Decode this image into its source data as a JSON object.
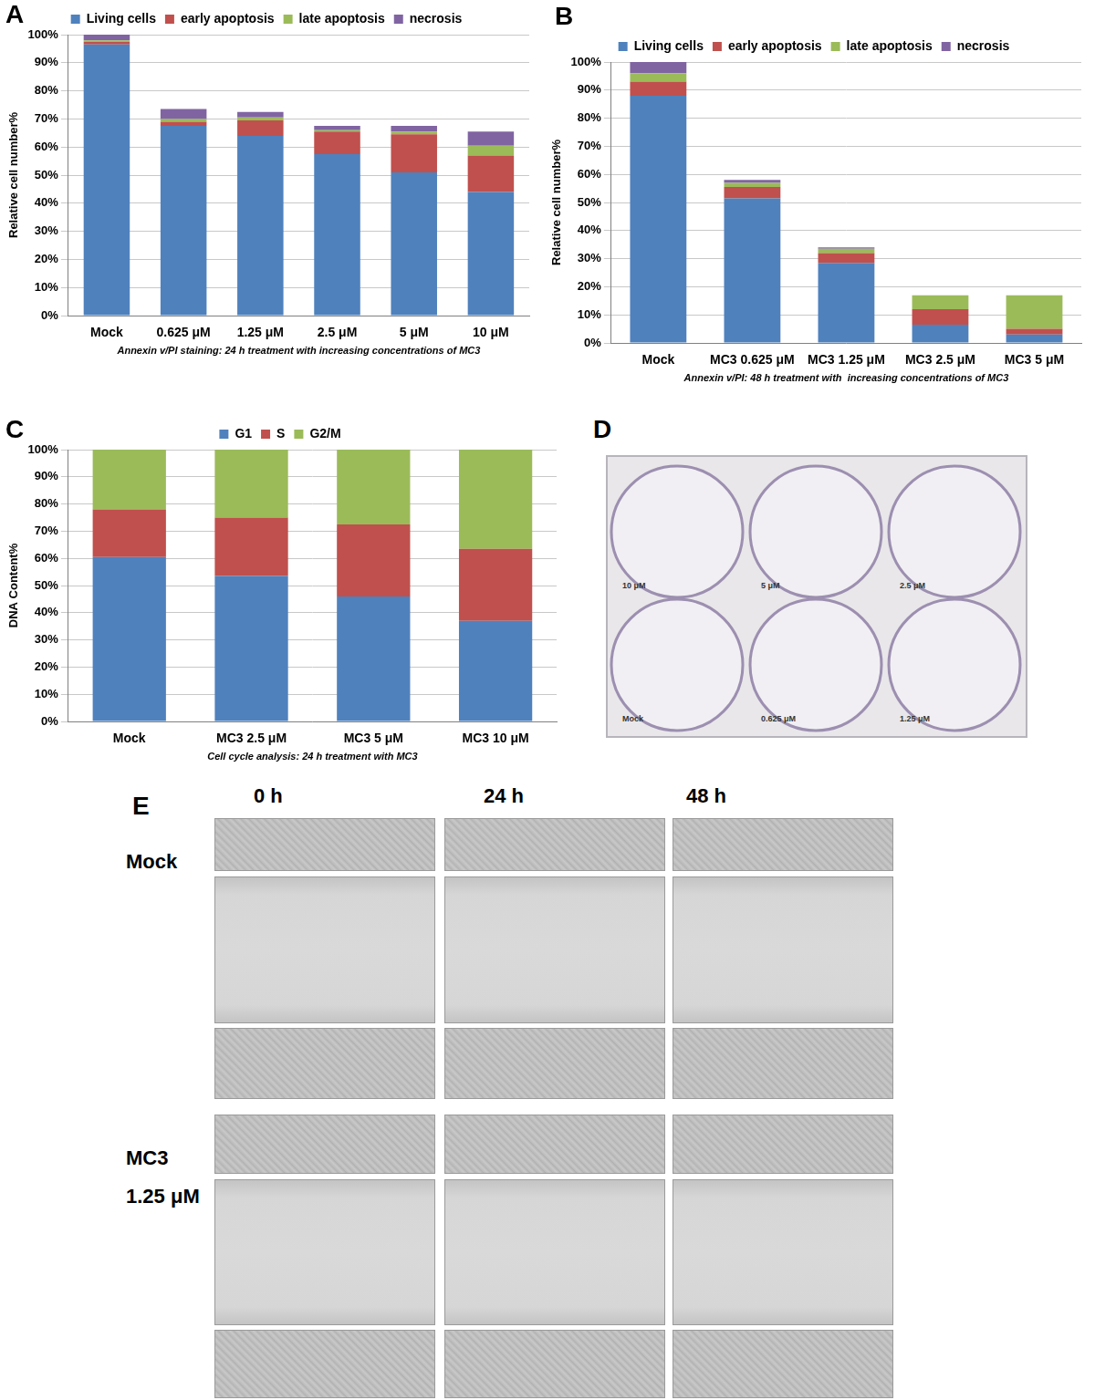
{
  "chart_data": [
    {
      "panel": "A",
      "type": "bar",
      "stacked": true,
      "grid": true,
      "legend": "top",
      "x_label": "Annexin v/PI staining: 24 h treatment with increasing concentrations of MC3",
      "y_label": "Relative cell number%",
      "categories": [
        "Mock",
        "0.625 μM",
        "1.25 μM",
        "2.5 μM",
        "5 μM",
        "10 μM"
      ],
      "series": [
        {
          "name": "Living cells",
          "color": "#4f81bd",
          "values": [
            96.5,
            67.5,
            64,
            57.5,
            51,
            44
          ]
        },
        {
          "name": "early apoptosis",
          "color": "#c0504d",
          "values": [
            1,
            1.5,
            5.5,
            8,
            13.5,
            13
          ]
        },
        {
          "name": "late apoptosis",
          "color": "#9bbb59",
          "values": [
            0.5,
            1,
            1,
            0.5,
            1,
            3.5
          ]
        },
        {
          "name": "necrosis",
          "color": "#8064a2",
          "values": [
            2,
            3.5,
            2,
            1.5,
            2,
            5
          ]
        }
      ],
      "ylim": [
        0,
        100
      ],
      "yticks": [
        {
          "value": 0,
          "label": "0%"
        },
        {
          "value": 10,
          "label": "10%"
        },
        {
          "value": 20,
          "label": "20%"
        },
        {
          "value": 30,
          "label": "30%"
        },
        {
          "value": 40,
          "label": "40%"
        },
        {
          "value": 50,
          "label": "50%"
        },
        {
          "value": 60,
          "label": "60%"
        },
        {
          "value": 70,
          "label": "70%"
        },
        {
          "value": 80,
          "label": "80%"
        },
        {
          "value": 90,
          "label": "90%"
        },
        {
          "value": 100,
          "label": "100%"
        }
      ]
    },
    {
      "panel": "B",
      "type": "bar",
      "stacked": true,
      "grid": true,
      "legend": "top",
      "x_label": "Annexin v/PI: 48 h treatment with  increasing concentrations of MC3",
      "y_label": "Relative cell number%",
      "categories": [
        "Mock",
        "MC3 0.625 μM",
        "MC3 1.25 μM",
        "MC3 2.5 μM",
        "MC3 5 μM"
      ],
      "series": [
        {
          "name": "Living cells",
          "color": "#4f81bd",
          "values": [
            88,
            51.5,
            28.5,
            6.5,
            3
          ]
        },
        {
          "name": "early apoptosis",
          "color": "#c0504d",
          "values": [
            5,
            4,
            3.5,
            5.5,
            2
          ]
        },
        {
          "name": "late apoptosis",
          "color": "#9bbb59",
          "values": [
            3,
            1.5,
            1.5,
            5,
            12
          ]
        },
        {
          "name": "necrosis",
          "color": "#8064a2",
          "values": [
            4,
            1,
            0.5,
            0,
            0
          ]
        }
      ],
      "ylim": [
        0,
        100
      ],
      "yticks": [
        {
          "value": 0,
          "label": "0%"
        },
        {
          "value": 10,
          "label": "10%"
        },
        {
          "value": 20,
          "label": "20%"
        },
        {
          "value": 30,
          "label": "30%"
        },
        {
          "value": 40,
          "label": "40%"
        },
        {
          "value": 50,
          "label": "50%"
        },
        {
          "value": 60,
          "label": "60%"
        },
        {
          "value": 70,
          "label": "70%"
        },
        {
          "value": 80,
          "label": "80%"
        },
        {
          "value": 90,
          "label": "90%"
        },
        {
          "value": 100,
          "label": "100%"
        }
      ]
    },
    {
      "panel": "C",
      "type": "bar",
      "stacked": true,
      "grid": true,
      "legend": "top",
      "x_label": "Cell cycle analysis: 24 h treatment with MC3",
      "y_label": "DNA Content%",
      "categories": [
        "Mock",
        "MC3 2.5 μM",
        "MC3 5 μM",
        "MC3 10 μM"
      ],
      "series": [
        {
          "name": "G1",
          "color": "#4f81bd",
          "values": [
            60.5,
            53.5,
            46,
            37
          ]
        },
        {
          "name": "S",
          "color": "#c0504d",
          "values": [
            17.5,
            21.5,
            26.5,
            26.5
          ]
        },
        {
          "name": "G2/M",
          "color": "#9bbb59",
          "values": [
            22,
            25,
            27.5,
            36.5
          ]
        }
      ],
      "ylim": [
        0,
        100
      ],
      "yticks": [
        {
          "value": 0,
          "label": "0%"
        },
        {
          "value": 10,
          "label": "10%"
        },
        {
          "value": 20,
          "label": "20%"
        },
        {
          "value": 30,
          "label": "30%"
        },
        {
          "value": 40,
          "label": "40%"
        },
        {
          "value": 50,
          "label": "50%"
        },
        {
          "value": 60,
          "label": "60%"
        },
        {
          "value": 70,
          "label": "70%"
        },
        {
          "value": 80,
          "label": "80%"
        },
        {
          "value": 90,
          "label": "90%"
        },
        {
          "value": 100,
          "label": "100%"
        }
      ]
    }
  ],
  "photo_panels": {
    "D": {
      "panel": "D",
      "wells": [
        "10 μM",
        "5 μM",
        "2.5 μM",
        "Mock",
        "0.625 μM",
        "1.25 μM"
      ]
    },
    "E": {
      "panel": "E",
      "columns": [
        "0 h",
        "24 h",
        "48 h"
      ],
      "rows": [
        [
          "Mock"
        ],
        [
          "MC3",
          "1.25 μM"
        ]
      ]
    }
  }
}
